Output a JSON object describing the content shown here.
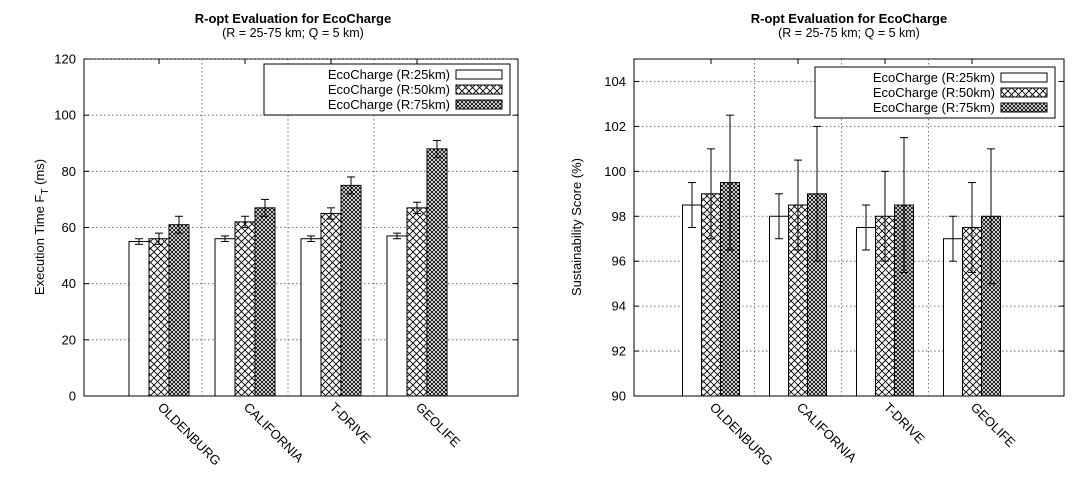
{
  "chart_data": [
    {
      "type": "bar",
      "title": "R-opt Evaluation for EcoCharge",
      "subtitle": "(R = 25-75 km; Q = 5 km)",
      "xlabel": "",
      "ylabel": "Execution Time F",
      "ylabel_sub": "T",
      "ylabel_unit": " (ms)",
      "ylim": [
        0,
        120
      ],
      "yticks": [
        0,
        20,
        40,
        60,
        80,
        100,
        120
      ],
      "grid": true,
      "legend": "top-right",
      "categories": [
        "OLDENBURG",
        "CALIFORNIA",
        "T-DRIVE",
        "GEOLIFE"
      ],
      "series": [
        {
          "name": "EcoCharge (R:25km)",
          "pattern": "none",
          "values": [
            55,
            56,
            56,
            57
          ],
          "errors": [
            1,
            1,
            1,
            1
          ]
        },
        {
          "name": "EcoCharge (R:50km)",
          "pattern": "crosshatch",
          "values": [
            56,
            62,
            65,
            67
          ],
          "errors": [
            2,
            2,
            2,
            2
          ]
        },
        {
          "name": "EcoCharge (R:75km)",
          "pattern": "dense-crosshatch",
          "values": [
            61,
            67,
            75,
            88
          ],
          "errors": [
            3,
            3,
            3,
            3
          ]
        }
      ]
    },
    {
      "type": "bar",
      "title": "R-opt Evaluation for EcoCharge",
      "subtitle": "(R = 25-75 km; Q = 5 km)",
      "xlabel": "",
      "ylabel": "Sustainability Score (%)",
      "ylim": [
        90,
        105
      ],
      "yticks": [
        90,
        92,
        94,
        96,
        98,
        100,
        102,
        104
      ],
      "grid": true,
      "legend": "top-right",
      "categories": [
        "OLDENBURG",
        "CALIFORNIA",
        "T-DRIVE",
        "GEOLIFE"
      ],
      "series": [
        {
          "name": "EcoCharge (R:25km)",
          "pattern": "none",
          "values": [
            98.5,
            98.0,
            97.5,
            97.0
          ],
          "errors": [
            1.0,
            1.0,
            1.0,
            1.0
          ]
        },
        {
          "name": "EcoCharge (R:50km)",
          "pattern": "crosshatch",
          "values": [
            99.0,
            98.5,
            98.0,
            97.5
          ],
          "errors": [
            2.0,
            2.0,
            2.0,
            2.0
          ]
        },
        {
          "name": "EcoCharge (R:75km)",
          "pattern": "dense-crosshatch",
          "values": [
            99.5,
            99.0,
            98.5,
            98.0
          ],
          "errors": [
            3.0,
            3.0,
            3.0,
            3.0
          ]
        }
      ]
    }
  ]
}
